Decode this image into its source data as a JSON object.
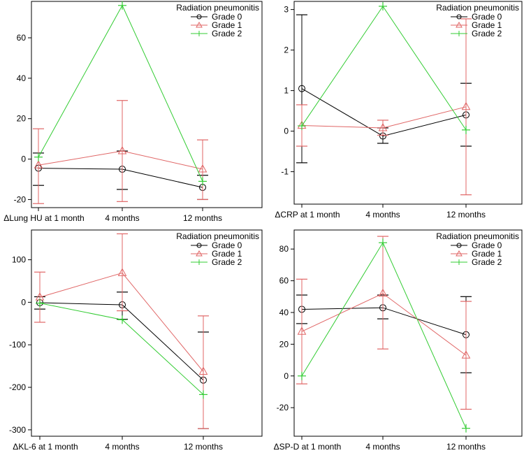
{
  "figure": {
    "legend_title": "Radiation pneumonitis",
    "x_categories_common": [
      "4 months",
      "12 months"
    ]
  },
  "chart_data": [
    {
      "type": "line",
      "panel": "lung-hu",
      "categories": [
        "ΔLung HU at 1 month",
        "4 months",
        "12 months"
      ],
      "ylim": [
        -24,
        78
      ],
      "yticks": [
        -20,
        0,
        20,
        40,
        60
      ],
      "legend": {
        "title": "Radiation pneumonitis",
        "placement": "top-right"
      },
      "series": [
        {
          "name": "Grade 0",
          "color": "#000000",
          "marker": "circle",
          "values": [
            -4.5,
            -5,
            -14
          ],
          "lower": [
            -13,
            -15,
            -20
          ],
          "upper": [
            3,
            4,
            -8
          ]
        },
        {
          "name": "Grade 1",
          "color": "#e06666",
          "marker": "triangle",
          "values": [
            -3,
            4,
            -5
          ],
          "lower": [
            -22,
            -21,
            -20
          ],
          "upper": [
            15,
            29,
            9.5
          ]
        },
        {
          "name": "Grade 2",
          "color": "#33cc33",
          "marker": "plus",
          "values": [
            1,
            76,
            -11
          ]
        }
      ]
    },
    {
      "type": "line",
      "panel": "crp",
      "categories": [
        "ΔCRP at 1 month",
        "4 months",
        "12 months"
      ],
      "ylim": [
        -1.8,
        3.2
      ],
      "yticks": [
        -1,
        0,
        1,
        2,
        3
      ],
      "legend": {
        "title": "Radiation pneumonitis",
        "placement": "top-right"
      },
      "series": [
        {
          "name": "Grade 0",
          "color": "#000000",
          "marker": "circle",
          "values": [
            1.05,
            -0.12,
            0.4
          ],
          "lower": [
            -0.78,
            -0.3,
            -0.37
          ],
          "upper": [
            2.87,
            0.08,
            1.18
          ]
        },
        {
          "name": "Grade 1",
          "color": "#e06666",
          "marker": "triangle",
          "values": [
            0.14,
            0.08,
            0.6
          ],
          "lower": [
            -0.37,
            -0.1,
            -1.57
          ],
          "upper": [
            0.65,
            0.27,
            2.77
          ]
        },
        {
          "name": "Grade 2",
          "color": "#33cc33",
          "marker": "plus",
          "values": [
            0.13,
            3.08,
            0.03
          ]
        }
      ]
    },
    {
      "type": "line",
      "panel": "kl6",
      "categories": [
        "ΔKL-6 at 1 month",
        "4 months",
        "12 months"
      ],
      "ylim": [
        -315,
        170
      ],
      "yticks": [
        -300,
        -200,
        -100,
        0,
        100
      ],
      "legend": {
        "title": "Radiation pneumonitis",
        "placement": "top-right"
      },
      "series": [
        {
          "name": "Grade 0",
          "color": "#000000",
          "marker": "circle",
          "values": [
            -1,
            -6,
            -183
          ],
          "lower": [
            -16,
            -40,
            -297
          ],
          "upper": [
            13,
            24,
            -70
          ]
        },
        {
          "name": "Grade 1",
          "color": "#e06666",
          "marker": "triangle",
          "values": [
            12,
            69,
            -163
          ],
          "lower": [
            -47,
            -20,
            -297
          ],
          "upper": [
            71,
            161,
            -32
          ]
        },
        {
          "name": "Grade 2",
          "color": "#33cc33",
          "marker": "plus",
          "values": [
            -2,
            -41,
            -217
          ]
        }
      ]
    },
    {
      "type": "line",
      "panel": "spd",
      "categories": [
        "ΔSP-D at 1 month",
        "4 months",
        "12 months"
      ],
      "ylim": [
        -38,
        92
      ],
      "yticks": [
        -20,
        0,
        20,
        40,
        60,
        80
      ],
      "legend": {
        "title": "Radiation pneumonitis",
        "placement": "top-right"
      },
      "series": [
        {
          "name": "Grade 0",
          "color": "#000000",
          "marker": "circle",
          "values": [
            42,
            43,
            26
          ],
          "lower": [
            33,
            36,
            2
          ],
          "upper": [
            51,
            51,
            50
          ]
        },
        {
          "name": "Grade 1",
          "color": "#e06666",
          "marker": "triangle",
          "values": [
            28,
            52,
            13
          ],
          "lower": [
            -5,
            17,
            -21
          ],
          "upper": [
            61,
            88,
            47
          ]
        },
        {
          "name": "Grade 2",
          "color": "#33cc33",
          "marker": "plus",
          "values": [
            0,
            84,
            -33
          ]
        }
      ]
    }
  ]
}
